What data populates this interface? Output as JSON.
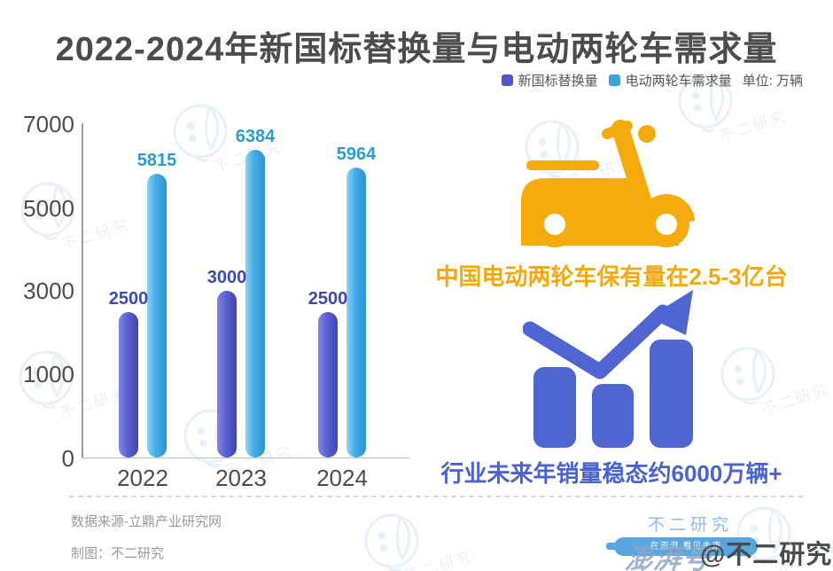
{
  "title": "2022-2024年新国标替换量与电动两轮车需求量",
  "legend": {
    "series1_label": "新国标替换量",
    "series2_label": "电动两轮车需求量",
    "unit_label": "单位: 万辆"
  },
  "chart_data": {
    "type": "bar",
    "title": "2022-2024年新国标替换量与电动两轮车需求量",
    "unit": "万辆",
    "categories": [
      "2022",
      "2023",
      "2024"
    ],
    "series": [
      {
        "name": "新国标替换量",
        "color": "#4D53C2",
        "label_color": "#3C4CB0",
        "values": [
          2500,
          3000,
          2500
        ]
      },
      {
        "name": "电动两轮车需求量",
        "color": "#3FA6E6",
        "label_color": "#2B9BD8",
        "values": [
          5815,
          6384,
          5964
        ]
      }
    ],
    "y_ticks": [
      7000,
      5000,
      3000,
      1000,
      0
    ],
    "ylim": [
      0,
      7000
    ],
    "grid": false,
    "legend_position": "top-right"
  },
  "right_panel": {
    "ownership_text": "中国电动两轮车保有量在2.5-3亿台",
    "forecast_text": "行业未来年销量稳态约6000万辆+",
    "scooter_icon_color": "#F5AB0D",
    "graph_icon_color": "#4F66D2"
  },
  "footer": {
    "source": "数据来源-立鼎产业研究网",
    "credit": "制图：不二研究",
    "brand": "不二研究",
    "platform_badge": "澎湃号",
    "badge_ribbon_text": "在澎湃 看见未来",
    "handle": "@不二研究"
  },
  "watermark_text": "不二研究",
  "colors": {
    "title": "#4C4C4C",
    "bar_purple": "#4D53C2",
    "bar_lightblue": "#3FA6E6",
    "accent_orange": "#F5A90B",
    "accent_blue": "#4A63D0",
    "watermark": "#D5E7F6"
  }
}
